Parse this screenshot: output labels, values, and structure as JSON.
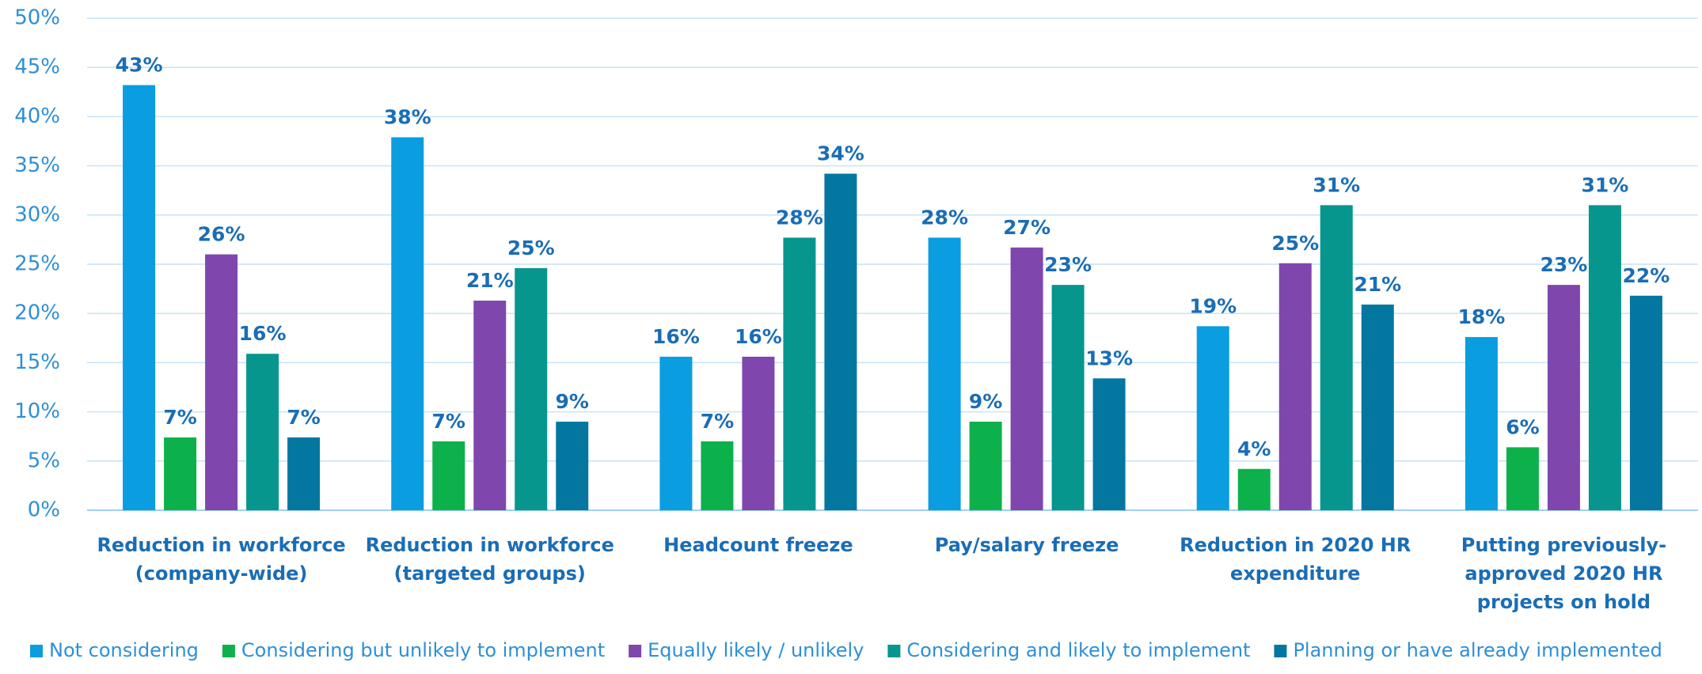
{
  "chart_data": {
    "type": "bar",
    "categories": [
      "Reduction in workforce\n(company-wide)",
      "Reduction in workforce\n(targeted groups)",
      "Headcount freeze",
      "Pay/salary freeze",
      "Reduction in 2020 HR\nexpenditure",
      "Putting previously-\napproved 2020 HR\nprojects on hold"
    ],
    "series": [
      {
        "name": "Not considering",
        "color": "#0a9de0",
        "values": [
          43.2,
          37.9,
          15.6,
          27.7,
          18.7,
          17.6
        ],
        "value_labels": [
          "43%",
          "38%",
          "16%",
          "28%",
          "19%",
          "18%"
        ]
      },
      {
        "name": "Considering but unlikely to implement",
        "color": "#0db14b",
        "values": [
          7.4,
          7.0,
          7.0,
          9.0,
          4.2,
          6.4
        ],
        "value_labels": [
          "7%",
          "7%",
          "7%",
          "9%",
          "4%",
          "6%"
        ]
      },
      {
        "name": "Equally likely / unlikely",
        "color": "#7f47ad",
        "values": [
          26.0,
          21.3,
          15.6,
          26.7,
          25.1,
          22.9
        ],
        "value_labels": [
          "26%",
          "21%",
          "16%",
          "27%",
          "25%",
          "23%"
        ]
      },
      {
        "name": "Considering and likely to implement",
        "color": "#06968e",
        "values": [
          15.9,
          24.6,
          27.7,
          22.9,
          31.0,
          31.0
        ],
        "value_labels": [
          "16%",
          "25%",
          "28%",
          "23%",
          "31%",
          "31%"
        ]
      },
      {
        "name": "Planning or have already implemented",
        "color": "#0477a1",
        "values": [
          7.4,
          9.0,
          34.2,
          13.4,
          20.9,
          21.8
        ],
        "value_labels": [
          "7%",
          "9%",
          "34%",
          "13%",
          "21%",
          "22%"
        ]
      }
    ],
    "ylim": [
      0,
      50
    ],
    "yticks": [
      {
        "value": 0,
        "label": "0%"
      },
      {
        "value": 5,
        "label": "5%"
      },
      {
        "value": 10,
        "label": "10%"
      },
      {
        "value": 15,
        "label": "15%"
      },
      {
        "value": 20,
        "label": "20%"
      },
      {
        "value": 25,
        "label": "25%"
      },
      {
        "value": 30,
        "label": "30%"
      },
      {
        "value": 35,
        "label": "35%"
      },
      {
        "value": 40,
        "label": "40%"
      },
      {
        "value": 45,
        "label": "45%"
      },
      {
        "value": 50,
        "label": "50%"
      }
    ],
    "grid": true,
    "legend": "bottom"
  }
}
